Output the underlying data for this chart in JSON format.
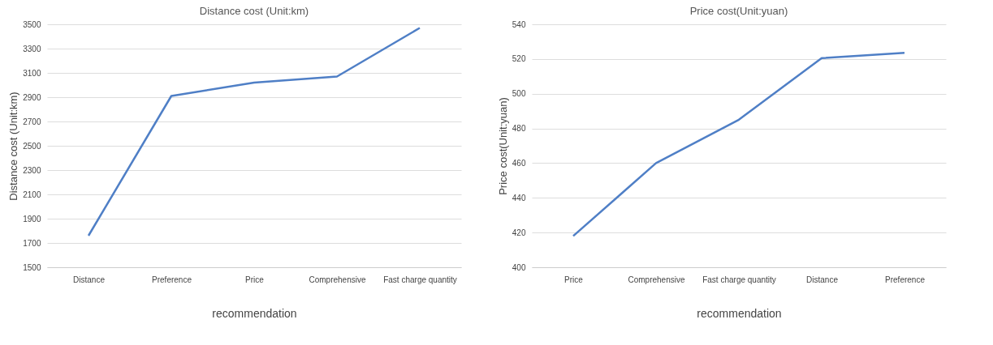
{
  "chart_data": [
    {
      "type": "line",
      "title": "Distance cost (Unit:km)",
      "xlabel": "recommendation",
      "ylabel": "Distance cost (Unit:km)",
      "categories": [
        "Distance",
        "Preference",
        "Price",
        "Comprehensive",
        "Fast charge quantity"
      ],
      "series": [
        {
          "color": "#4f7fc6",
          "values": [
            1760,
            2910,
            3020,
            3070,
            3470
          ]
        }
      ],
      "ylim": [
        1500,
        3500
      ],
      "yticks": [
        1500,
        1700,
        1900,
        2100,
        2300,
        2500,
        2700,
        2900,
        3100,
        3300,
        3500
      ],
      "grid": "y",
      "legend": false
    },
    {
      "type": "line",
      "title": "Price cost(Unit:yuan)",
      "xlabel": "recommendation",
      "ylabel": "Price cost(Unit:yuan)",
      "categories": [
        "Price",
        "Comprehensive",
        "Fast charge quantity",
        "Distance",
        "Preference"
      ],
      "series": [
        {
          "color": "#4f7fc6",
          "values": [
            418,
            460,
            485,
            520.5,
            523.5
          ]
        }
      ],
      "ylim": [
        400,
        540
      ],
      "yticks": [
        400,
        420,
        440,
        460,
        480,
        500,
        520,
        540
      ],
      "grid": "y",
      "legend": false
    }
  ]
}
